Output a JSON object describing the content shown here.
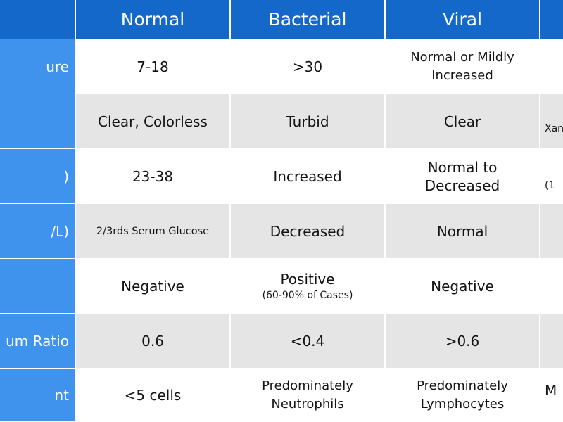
{
  "header": {
    "columns": [
      "Normal",
      "Bacterial",
      "Viral"
    ]
  },
  "rows": [
    {
      "label": "ure",
      "normal": "7-18",
      "bacterial": ">30",
      "viral": [
        "Normal or Mildly",
        "Increased"
      ],
      "partial": ""
    },
    {
      "label": "",
      "normal": "Clear, Colorless",
      "bacterial": "Turbid",
      "viral": "Clear",
      "partial": "Xan"
    },
    {
      "label": ")",
      "normal": "23-38",
      "bacterial": "Increased",
      "viral": [
        "Normal to",
        "Decreased"
      ],
      "partial": "(1"
    },
    {
      "label": "/L)",
      "normal": "2/3rds Serum Glucose",
      "bacterial": "Decreased",
      "viral": "Normal",
      "partial": ""
    },
    {
      "label": "",
      "normal": "Negative",
      "bacterial": "Positive",
      "bacterial_sub": "(60-90% of Cases)",
      "viral": "Negative",
      "partial": ""
    },
    {
      "label": "um Ratio",
      "normal": "0.6",
      "bacterial": "<0.4",
      "viral": ">0.6",
      "partial": ""
    },
    {
      "label": "nt",
      "normal": "<5 cells",
      "bacterial": [
        "Predominately",
        "Neutrophils"
      ],
      "viral": [
        "Predominately",
        "Lymphocytes"
      ],
      "partial": "M"
    }
  ],
  "colors": {
    "header_bg": "#1368c9",
    "label_bg": "#3f93ec",
    "row_even_bg": "#e5e5e5",
    "row_odd_bg": "#ffffff"
  }
}
